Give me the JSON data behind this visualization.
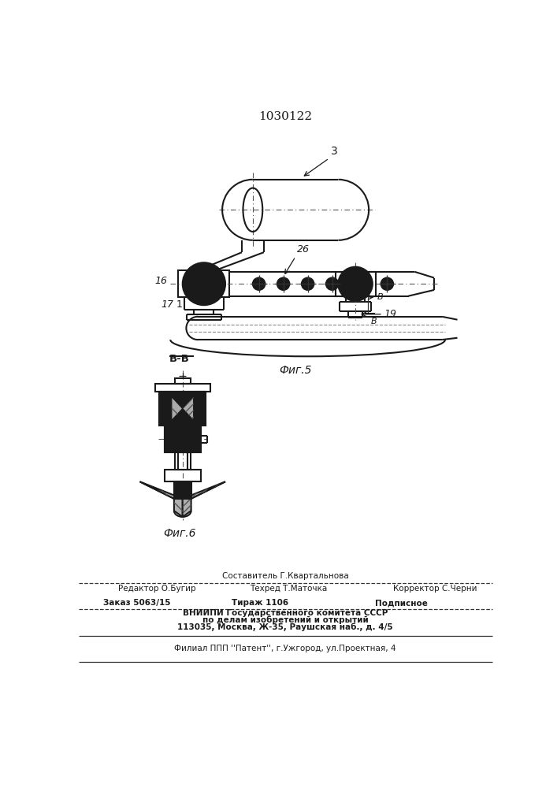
{
  "patent_number": "1030122",
  "fig5_label": "Фиг.5",
  "fig6_label": "Фиг.6",
  "section_label": "B-B",
  "line_color": "#1a1a1a",
  "label_3": "3",
  "label_16": "16",
  "label_17": "17",
  "label_26": "26",
  "label_1": "1",
  "label_B": "B",
  "label_19": "19",
  "footer_line1": "Составитель Г.Квартальнова",
  "footer_line2_left": "Редактор О.Бугир",
  "footer_line2_mid": "Техред Т.Маточка",
  "footer_line2_right": "Корректор С.Черни",
  "footer_line3_left": "Заказ 5063/15",
  "footer_line3_mid": "Тираж 1106",
  "footer_line3_right": "Подписное",
  "footer_line4": "ВНИИПИ Государственного комитета СССР",
  "footer_line5": "по делам изобретений и открытий",
  "footer_line6": "113035, Москва, Ж-35, Раушская наб., д. 4/5",
  "footer_line7": "Филиал ППП ''Патент'', г.Ужгород, ул.Проектная, 4"
}
